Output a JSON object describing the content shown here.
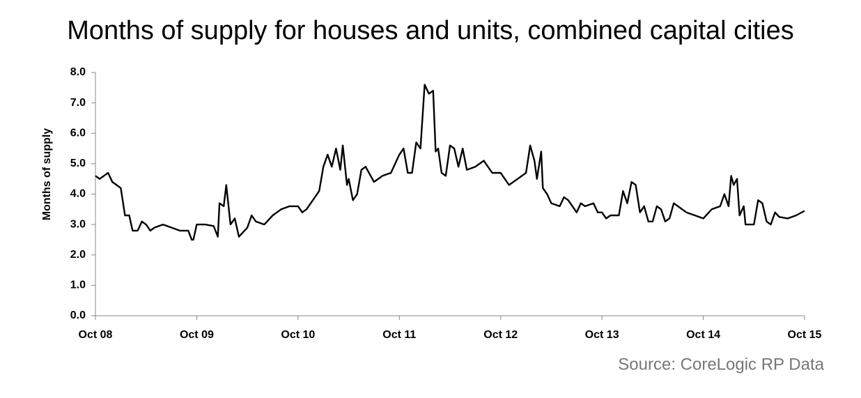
{
  "chart_data": {
    "type": "line",
    "title": "Months of supply for houses and units, combined capital cities",
    "ylabel": "Months of supply",
    "source": "Source: CoreLogic RP Data",
    "color": "#000000",
    "x": [
      0,
      0.5,
      1,
      1.5,
      2,
      2.5,
      3,
      3.5,
      4,
      4.4,
      5,
      5.5,
      6,
      6.5,
      7,
      8,
      9,
      10,
      11,
      11.4,
      11.6,
      12,
      13,
      14,
      14.5,
      14.7,
      15.2,
      15.5,
      16,
      16.5,
      17,
      18,
      18.5,
      19,
      20,
      21,
      22,
      23,
      24,
      24.5,
      25,
      26,
      26.5,
      27,
      27.5,
      28,
      28.5,
      29,
      29.3,
      29.8,
      30,
      30.5,
      31,
      31.5,
      32,
      33,
      34,
      35,
      36,
      36.5,
      37,
      37.5,
      38,
      38.5,
      39,
      39.5,
      40,
      40.3,
      40.6,
      41,
      41.5,
      42,
      42.5,
      43,
      43.5,
      44,
      45,
      46,
      47,
      48,
      49,
      50,
      51,
      51.5,
      52,
      52.3,
      52.8,
      53,
      53.5,
      54,
      55,
      55.5,
      56,
      57,
      57.5,
      58,
      59,
      59.5,
      60,
      60.5,
      61,
      62,
      62.5,
      63,
      63.5,
      64,
      64.5,
      65,
      65.5,
      66,
      66.5,
      67,
      67.5,
      68,
      68.5,
      69,
      70,
      71,
      72,
      73,
      74,
      74.5,
      75,
      75.3,
      75.6,
      76,
      76.3,
      76.8,
      77,
      78,
      78.5,
      79,
      79.5,
      80,
      80.5,
      81,
      82,
      83,
      84
    ],
    "values": [
      4.6,
      4.5,
      4.6,
      4.7,
      4.4,
      4.3,
      4.2,
      3.3,
      3.3,
      2.8,
      2.8,
      3.1,
      3.0,
      2.8,
      2.9,
      3.0,
      2.9,
      2.8,
      2.8,
      2.5,
      2.5,
      3.0,
      3.0,
      2.95,
      2.6,
      3.7,
      3.6,
      4.3,
      3.0,
      3.2,
      2.6,
      2.9,
      3.3,
      3.1,
      3.0,
      3.3,
      3.5,
      3.6,
      3.6,
      3.4,
      3.5,
      3.9,
      4.1,
      4.9,
      5.3,
      4.9,
      5.5,
      4.8,
      5.6,
      4.3,
      4.5,
      3.8,
      4.0,
      4.8,
      4.9,
      4.4,
      4.6,
      4.7,
      5.3,
      5.5,
      4.7,
      4.7,
      5.7,
      5.5,
      7.6,
      7.3,
      7.4,
      5.4,
      5.5,
      4.7,
      4.6,
      5.6,
      5.5,
      4.9,
      5.5,
      4.8,
      4.9,
      5.1,
      4.7,
      4.7,
      4.3,
      4.5,
      4.7,
      5.6,
      5.1,
      4.5,
      5.4,
      4.2,
      4.0,
      3.7,
      3.6,
      3.9,
      3.8,
      3.4,
      3.7,
      3.6,
      3.7,
      3.4,
      3.4,
      3.2,
      3.3,
      3.3,
      4.1,
      3.7,
      4.4,
      4.3,
      3.4,
      3.6,
      3.1,
      3.1,
      3.6,
      3.5,
      3.1,
      3.2,
      3.7,
      3.6,
      3.4,
      3.3,
      3.2,
      3.5,
      3.6,
      4.0,
      3.6,
      4.6,
      4.3,
      4.5,
      3.3,
      3.6,
      3.0,
      3.0,
      3.8,
      3.7,
      3.1,
      3.0,
      3.4,
      3.25,
      3.2,
      3.3,
      3.45
    ],
    "xlim": [
      0,
      84
    ],
    "xticks": [
      {
        "value": 0,
        "label": "Oct 08"
      },
      {
        "value": 12,
        "label": "Oct 09"
      },
      {
        "value": 24,
        "label": "Oct 10"
      },
      {
        "value": 36,
        "label": "Oct 11"
      },
      {
        "value": 48,
        "label": "Oct 12"
      },
      {
        "value": 60,
        "label": "Oct 13"
      },
      {
        "value": 72,
        "label": "Oct 14"
      },
      {
        "value": 84,
        "label": "Oct 15"
      }
    ],
    "ylim": [
      0,
      8
    ],
    "yticks": [
      {
        "value": 0,
        "label": "0.0"
      },
      {
        "value": 1,
        "label": "1.0"
      },
      {
        "value": 2,
        "label": "2.0"
      },
      {
        "value": 3,
        "label": "3.0"
      },
      {
        "value": 4,
        "label": "4.0"
      },
      {
        "value": 5,
        "label": "5.0"
      },
      {
        "value": 6,
        "label": "6.0"
      },
      {
        "value": 7,
        "label": "7.0"
      },
      {
        "value": 8,
        "label": "8.0"
      }
    ],
    "grid": false
  }
}
